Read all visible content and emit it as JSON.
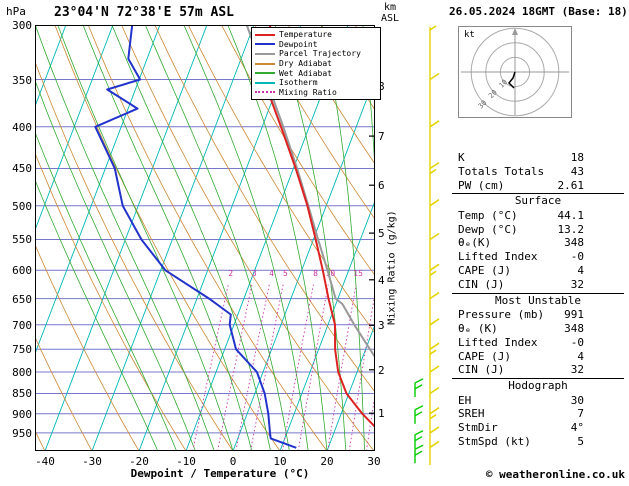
{
  "header": {
    "station": "23°04'N 72°38'E 57m ASL",
    "datetime": "26.05.2024 18GMT (Base: 18)"
  },
  "axes": {
    "pressure_unit": "hPa",
    "pressure_ticks": [
      300,
      350,
      400,
      450,
      500,
      550,
      600,
      650,
      700,
      750,
      800,
      850,
      900,
      950
    ],
    "temp_ticks": [
      -40,
      -30,
      -20,
      -10,
      0,
      10,
      20,
      30
    ],
    "temp_axis_label": "Dewpoint / Temperature (°C)",
    "km_unit_line1": "km",
    "km_unit_line2": "ASL",
    "km_ticks": [
      8,
      7,
      6,
      5,
      4,
      3,
      2,
      1
    ],
    "mixing_ratio_axis_label": "Mixing Ratio (g/kg)"
  },
  "legend": {
    "items": [
      {
        "label": "Temperature",
        "color": "#dd2222",
        "dotted": false
      },
      {
        "label": "Dewpoint",
        "color": "#2233cc",
        "dotted": false
      },
      {
        "label": "Parcel Trajectory",
        "color": "#999999",
        "dotted": false
      },
      {
        "label": "Dry Adiabat",
        "color": "#cc8833",
        "dotted": false
      },
      {
        "label": "Wet Adiabat",
        "color": "#33aa33",
        "dotted": false
      },
      {
        "label": "Isotherm",
        "color": "#00b7b7",
        "dotted": false
      },
      {
        "label": "Mixing Ratio",
        "color": "#cc33aa",
        "dotted": true
      }
    ]
  },
  "chart_data": {
    "type": "line",
    "subtype": "skew-t-log-p",
    "title": "23°04'N 72°38'E 57m ASL",
    "xlabel": "Dewpoint / Temperature (°C)",
    "ylabel": "hPa",
    "pressure_range_hpa": [
      300,
      1000
    ],
    "temp_ticks_c": [
      -40,
      -30,
      -20,
      -10,
      0,
      10,
      20,
      30
    ],
    "km_asl_ticks": [
      1,
      2,
      3,
      4,
      5,
      6,
      7,
      8
    ],
    "mixing_ratio_lines_gkg": [
      2,
      3,
      4,
      5,
      8,
      10,
      15,
      20,
      25
    ],
    "grid": [
      "isobars",
      "isotherms",
      "dry adiabats",
      "wet adiabats",
      "mixing ratio"
    ],
    "legend_position": "top-right-inside",
    "series": [
      {
        "name": "Temperature",
        "color": "#dd2222",
        "points_p_T": [
          [
            991,
            44.1
          ],
          [
            950,
            30
          ],
          [
            900,
            24.5
          ],
          [
            850,
            19.5
          ],
          [
            800,
            16
          ],
          [
            750,
            13.5
          ],
          [
            700,
            11.5
          ],
          [
            650,
            8
          ],
          [
            600,
            4.5
          ],
          [
            550,
            0.5
          ],
          [
            500,
            -4
          ],
          [
            450,
            -9.5
          ],
          [
            400,
            -16
          ],
          [
            350,
            -23.5
          ],
          [
            300,
            -26.5
          ]
        ]
      },
      {
        "name": "Dewpoint",
        "color": "#2233cc",
        "points_p_T": [
          [
            991,
            13.2
          ],
          [
            965,
            7
          ],
          [
            950,
            6.4
          ],
          [
            900,
            4.5
          ],
          [
            850,
            2.1
          ],
          [
            800,
            -1.3
          ],
          [
            750,
            -7.6
          ],
          [
            700,
            -10.9
          ],
          [
            680,
            -11.5
          ],
          [
            650,
            -17.4
          ],
          [
            600,
            -29
          ],
          [
            550,
            -36.6
          ],
          [
            500,
            -43.3
          ],
          [
            450,
            -48
          ],
          [
            400,
            -55.5
          ],
          [
            380,
            -48
          ],
          [
            360,
            -56
          ],
          [
            350,
            -49.8
          ],
          [
            330,
            -54
          ],
          [
            300,
            -55.9
          ]
        ]
      },
      {
        "name": "Parcel Trajectory",
        "color": "#999999",
        "points_p_T": [
          [
            991,
            44.1
          ],
          [
            950,
            40.3
          ],
          [
            900,
            35.6
          ],
          [
            850,
            30.8
          ],
          [
            800,
            25.9
          ],
          [
            750,
            20.9
          ],
          [
            700,
            15.6
          ],
          [
            660,
            11.4
          ],
          [
            650,
            9.5
          ],
          [
            600,
            5.5
          ],
          [
            550,
            1
          ],
          [
            500,
            -3.8
          ],
          [
            450,
            -9.2
          ],
          [
            400,
            -15.5
          ],
          [
            350,
            -23
          ],
          [
            300,
            -31.5
          ]
        ]
      }
    ],
    "wind_barb_levels_hpa": [
      300,
      350,
      400,
      450,
      500,
      550,
      600,
      650,
      700,
      750,
      800,
      850,
      900,
      950,
      990
    ],
    "green_barb_levels_hpa": [
      825,
      890,
      955,
      995
    ]
  },
  "hodograph": {
    "unit_label": "kt",
    "ring_labels": [
      "10",
      "20",
      "30"
    ]
  },
  "stats": {
    "top_rows": [
      {
        "label": "K",
        "value": "18"
      },
      {
        "label": "Totals Totals",
        "value": "43"
      },
      {
        "label": "PW (cm)",
        "value": "2.61"
      }
    ],
    "sections": [
      {
        "title": "Surface",
        "rows": [
          {
            "label": "Temp (°C)",
            "value": "44.1"
          },
          {
            "label": "Dewp (°C)",
            "value": "13.2"
          },
          {
            "label": "θₑ(K)",
            "value": "348"
          },
          {
            "label": "Lifted Index",
            "value": "-0"
          },
          {
            "label": "CAPE (J)",
            "value": "4"
          },
          {
            "label": "CIN (J)",
            "value": "32"
          }
        ]
      },
      {
        "title": "Most Unstable",
        "rows": [
          {
            "label": "Pressure (mb)",
            "value": "991"
          },
          {
            "label": "θₑ (K)",
            "value": "348"
          },
          {
            "label": "Lifted Index",
            "value": "-0"
          },
          {
            "label": "CAPE (J)",
            "value": "4"
          },
          {
            "label": "CIN (J)",
            "value": "32"
          }
        ]
      },
      {
        "title": "Hodograph",
        "rows": [
          {
            "label": "EH",
            "value": "30"
          },
          {
            "label": "SREH",
            "value": "7"
          },
          {
            "label": "StmDir",
            "value": "4°"
          },
          {
            "label": "StmSpd (kt)",
            "value": "5"
          }
        ]
      }
    ]
  },
  "footer": {
    "copyright": "© weatheronline.co.uk"
  }
}
